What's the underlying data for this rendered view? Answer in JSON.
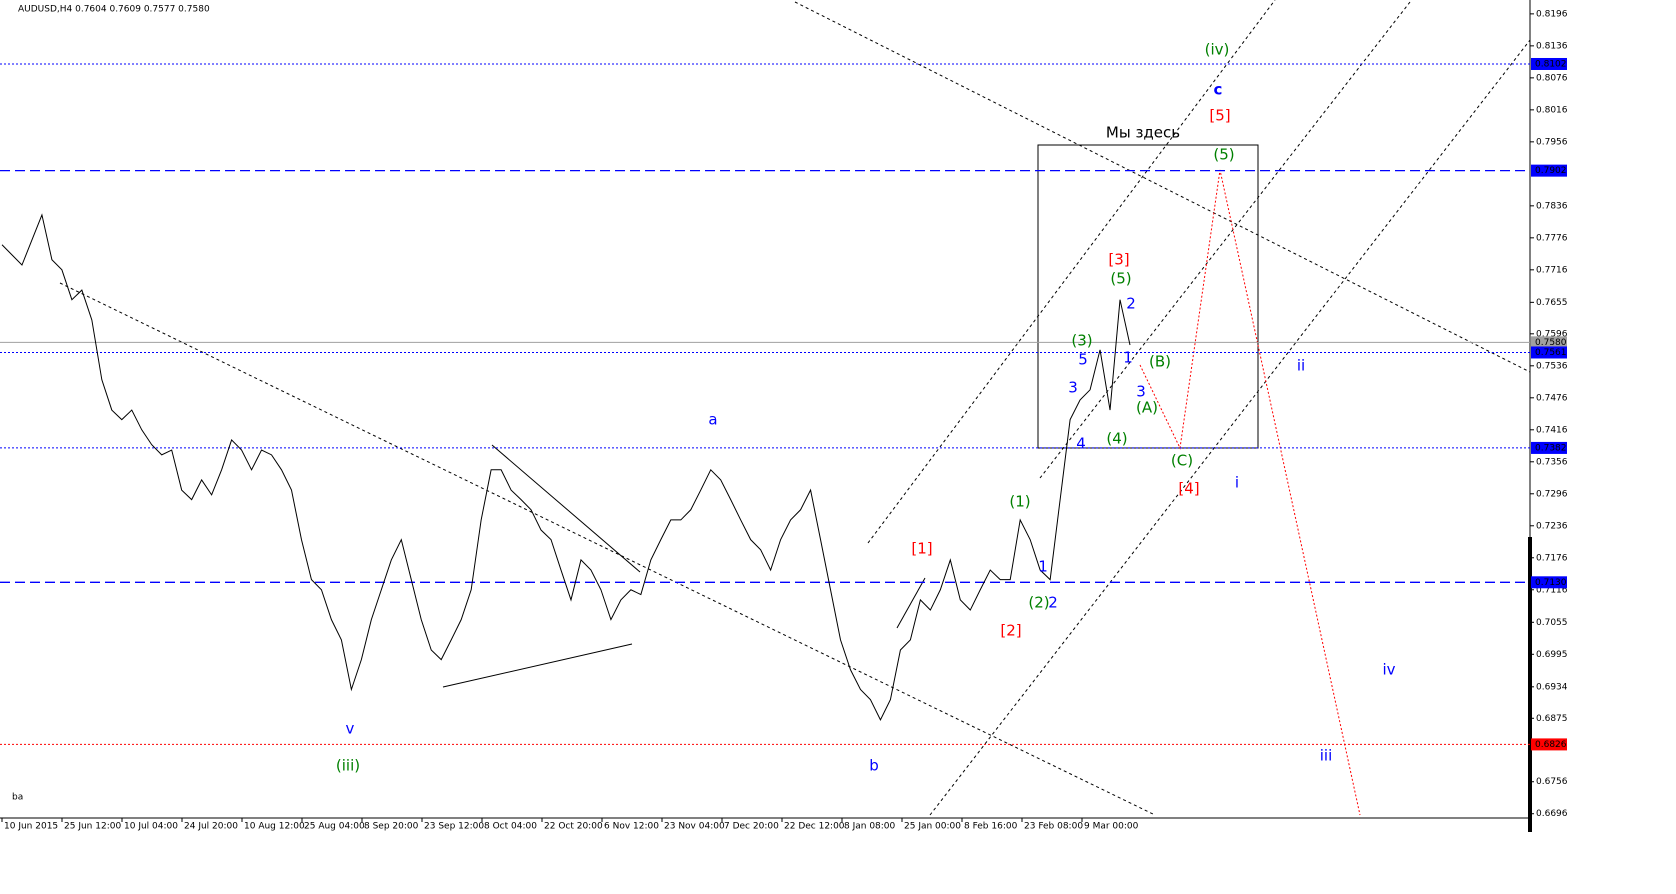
{
  "chart_data": {
    "type": "line",
    "title": "AUDUSD,H4  0.7604 0.7609 0.7577 0.7580",
    "x_labels": [
      "10 Jun 2015",
      "25 Jun 12:00",
      "10 Jul 04:00",
      "24 Jul 20:00",
      "10 Aug 12:00",
      "25 Aug 04:00",
      "8 Sep 20:00",
      "23 Sep 12:00",
      "8 Oct 04:00",
      "22 Oct 20:00",
      "6 Nov 12:00",
      "23 Nov 04:00",
      "7 Dec 20:00",
      "22 Dec 12:00",
      "8 Jan 08:00",
      "25 Jan 00:00",
      "8 Feb 16:00",
      "23 Feb 08:00",
      "9 Mar 00:00"
    ],
    "series": [
      {
        "name": "AUDUSD",
        "color": "#000000",
        "values": [
          0.7763,
          0.7744,
          0.7725,
          0.7772,
          0.7819,
          0.7735,
          0.7716,
          0.766,
          0.7678,
          0.7622,
          0.751,
          0.7453,
          0.7435,
          0.7453,
          0.7416,
          0.7388,
          0.7369,
          0.7378,
          0.7303,
          0.7285,
          0.7322,
          0.7294,
          0.7341,
          0.7397,
          0.7378,
          0.7341,
          0.7378,
          0.7369,
          0.7341,
          0.7303,
          0.721,
          0.7135,
          0.7116,
          0.706,
          0.7022,
          0.6929,
          0.6985,
          0.706,
          0.7116,
          0.7172,
          0.721,
          0.7135,
          0.706,
          0.7003,
          0.6985,
          0.7022,
          0.706,
          0.7116,
          0.7247,
          0.7341,
          0.7341,
          0.7303,
          0.7285,
          0.7266,
          0.7228,
          0.721,
          0.7153,
          0.7097,
          0.7172,
          0.7153,
          0.7116,
          0.706,
          0.7097,
          0.7116,
          0.7107,
          0.7172,
          0.721,
          0.7247,
          0.7247,
          0.7266,
          0.7303,
          0.7341,
          0.7322,
          0.7285,
          0.7247,
          0.721,
          0.7191,
          0.7153,
          0.721,
          0.7247,
          0.7266,
          0.7303,
          0.721,
          0.7116,
          0.7022,
          0.6966,
          0.6929,
          0.691,
          0.6872,
          0.691,
          0.7003,
          0.7022,
          0.7097,
          0.7078,
          0.7116,
          0.7172,
          0.7097,
          0.7078,
          0.7116,
          0.7153,
          0.7135,
          0.7135,
          0.7247,
          0.721,
          0.7153,
          0.7135,
          0.7285,
          0.7435,
          0.7472,
          0.7491,
          0.7566,
          0.7453,
          0.766,
          0.7575
        ]
      }
    ],
    "ylim": [
      0.6688,
      0.8222
    ],
    "yticks": [
      0.8196,
      0.8136,
      0.8076,
      0.8016,
      0.7956,
      0.7836,
      0.7776,
      0.7716,
      0.7655,
      0.7596,
      0.7536,
      0.7476,
      0.7416,
      0.7356,
      0.7296,
      0.7236,
      0.7176,
      0.7116,
      0.7055,
      0.6995,
      0.6934,
      0.6875,
      0.6756,
      0.6696
    ],
    "levels": [
      {
        "value": 0.8102,
        "label": "0.8102",
        "color": "#0000ff",
        "style": "dotted"
      },
      {
        "value": 0.7902,
        "label": "0.7902",
        "color": "#0000ff",
        "style": "dashed"
      },
      {
        "value": 0.758,
        "label": "0.7580",
        "color": "#a0a0a0",
        "style": "solid"
      },
      {
        "value": 0.7561,
        "label": "0.7561",
        "color": "#0000ff",
        "style": "dotted"
      },
      {
        "value": 0.7382,
        "label": "0.7382",
        "color": "#0000ff",
        "style": "dotted"
      },
      {
        "value": 0.713,
        "label": "0.7130",
        "color": "#0000ff",
        "style": "dashed"
      },
      {
        "value": 0.6826,
        "label": "0.6826",
        "color": "#ff0000",
        "style": "dotted"
      }
    ],
    "annotations": [
      {
        "text": "a",
        "color": "#0000ff"
      },
      {
        "text": "v",
        "color": "#0000ff"
      },
      {
        "text": "(iii)",
        "color": "#008000"
      },
      {
        "text": "b",
        "color": "#0000ff"
      },
      {
        "text": "[1]",
        "color": "#ff0000"
      },
      {
        "text": "[2]",
        "color": "#ff0000"
      },
      {
        "text": "(1)",
        "color": "#008000"
      },
      {
        "text": "(2)",
        "color": "#008000"
      },
      {
        "text": "2",
        "color": "#0000ff"
      },
      {
        "text": "1",
        "color": "#0000ff"
      },
      {
        "text": "4",
        "color": "#0000ff"
      },
      {
        "text": "3",
        "color": "#0000ff"
      },
      {
        "text": "5",
        "color": "#0000ff"
      },
      {
        "text": "(3)",
        "color": "#008000"
      },
      {
        "text": "(4)",
        "color": "#008000"
      },
      {
        "text": "[3]",
        "color": "#ff0000"
      },
      {
        "text": "(5)",
        "color": "#008000"
      },
      {
        "text": "2",
        "color": "#0000ff"
      },
      {
        "text": "1",
        "color": "#0000ff"
      },
      {
        "text": "(B)",
        "color": "#008000"
      },
      {
        "text": "3",
        "color": "#0000ff"
      },
      {
        "text": "(A)",
        "color": "#008000"
      },
      {
        "text": "(C)",
        "color": "#008000"
      },
      {
        "text": "[4]",
        "color": "#ff0000"
      },
      {
        "text": "i",
        "color": "#0000ff"
      },
      {
        "text": "(5)",
        "color": "#008000"
      },
      {
        "text": "[5]",
        "color": "#ff0000"
      },
      {
        "text": "c",
        "color": "#0000ff"
      },
      {
        "text": "(iv)",
        "color": "#008000"
      },
      {
        "text": "ii",
        "color": "#0000ff"
      },
      {
        "text": "iv",
        "color": "#0000ff"
      },
      {
        "text": "iii",
        "color": "#0000ff"
      },
      {
        "text": "Мы здесь",
        "color": "#000000"
      }
    ],
    "footer": "ba"
  }
}
